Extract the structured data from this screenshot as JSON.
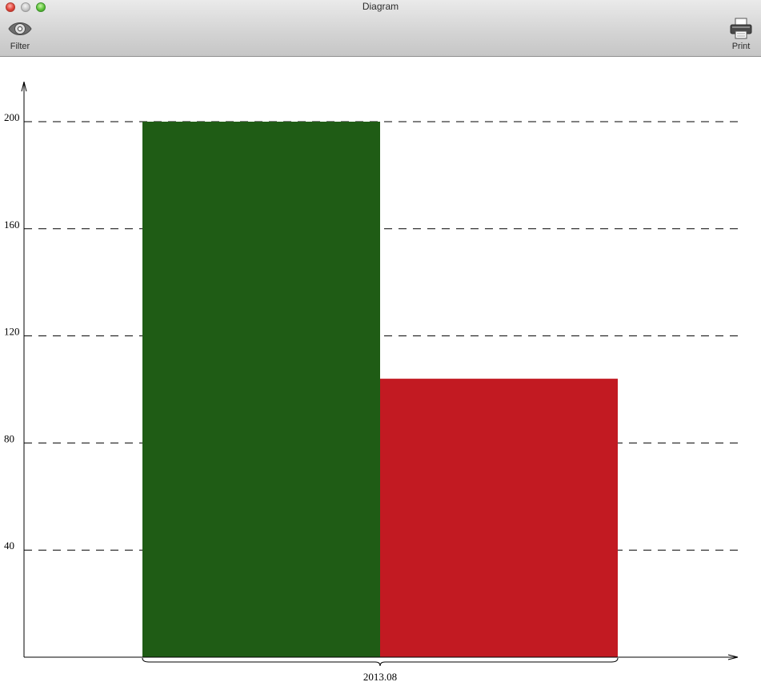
{
  "window": {
    "title": "Diagram"
  },
  "toolbar": {
    "filter_label": "Filter",
    "filter_icon": "eye-icon",
    "print_label": "Print",
    "print_icon": "printer-icon"
  },
  "chart_data": {
    "type": "bar",
    "title": "",
    "xlabel": "",
    "ylabel": "",
    "categories": [
      "2013.08"
    ],
    "series": [
      {
        "values": [
          200
        ],
        "color": "#1f5c15"
      },
      {
        "values": [
          104
        ],
        "color": "#c21a22"
      }
    ],
    "yticks": [
      40,
      80,
      120,
      160,
      200
    ],
    "ylim": [
      0,
      214
    ],
    "grid": true,
    "grid_style": "dashed",
    "legend": "none"
  }
}
